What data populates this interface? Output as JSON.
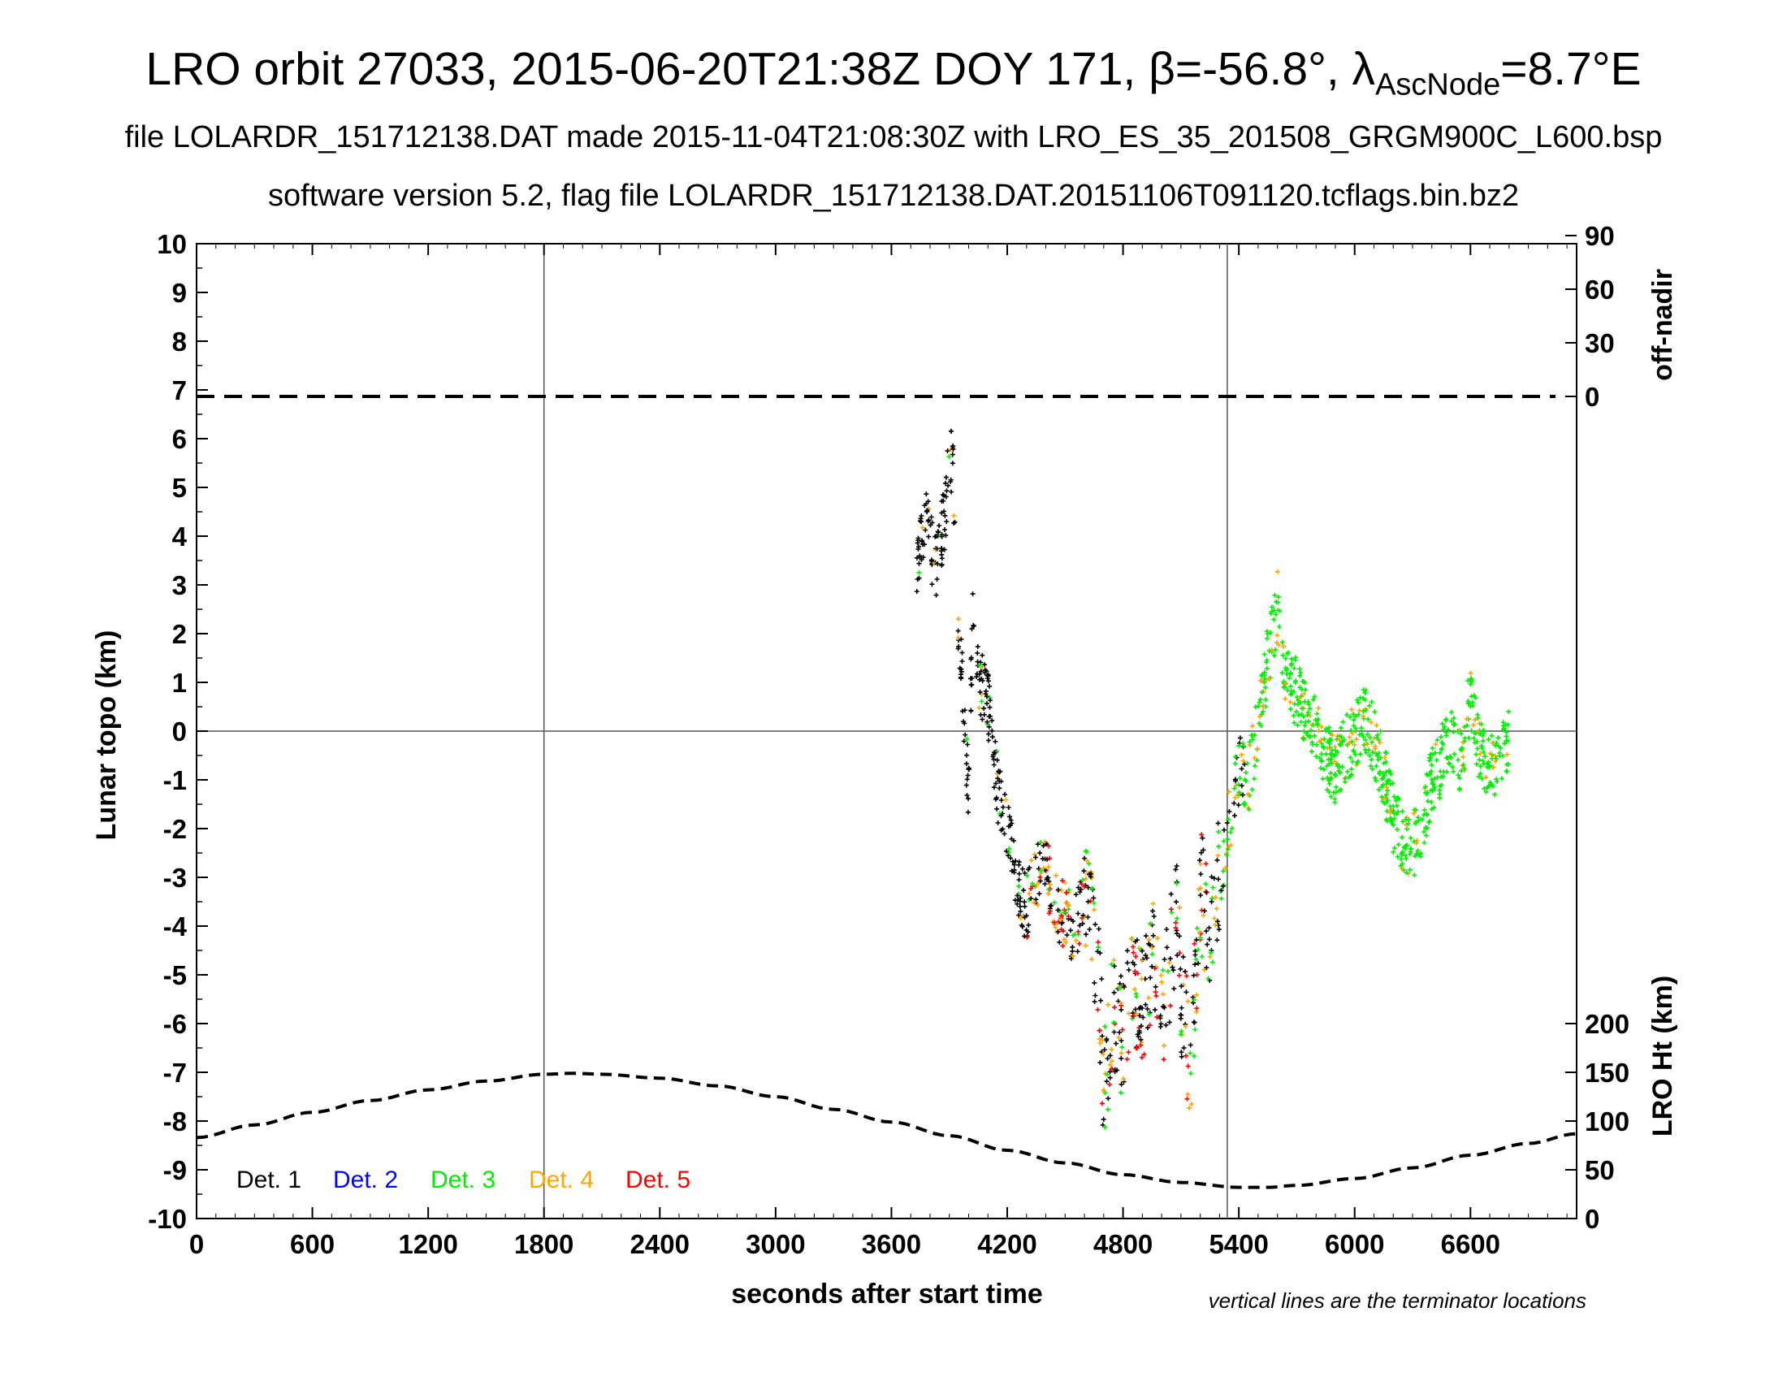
{
  "titles": {
    "line1_prefix": "LRO orbit 27033, 2015-06-20T21:38Z DOY 171, β=-56.8°, λ",
    "line1_sub": "AscNode",
    "line1_suffix": "=8.7°E",
    "line2": "file LOLARDR_151712138.DAT made 2015-11-04T21:08:30Z with LRO_ES_35_201508_GRGM900C_L600.bsp",
    "line3": "software version 5.2, flag file LOLARDR_151712138.DAT.20151106T091120.tcflags.bin.bz2"
  },
  "chart_data": {
    "type": "scatter",
    "xlabel": "seconds after start time",
    "ylabel": "Lunar topo (km)",
    "right_axis_top_label": "off-nadir",
    "right_axis_bottom_label": "LRO Ht (km)",
    "note": "vertical lines are the terminator locations",
    "xlim": [
      0,
      7150
    ],
    "ylim": [
      -10,
      10
    ],
    "x_ticks": [
      0,
      600,
      1200,
      1800,
      2400,
      3000,
      3600,
      4200,
      4800,
      5400,
      6000,
      6600
    ],
    "y_ticks": [
      10,
      9,
      8,
      7,
      6,
      5,
      4,
      3,
      2,
      1,
      0,
      -1,
      -2,
      -3,
      -4,
      -5,
      -6,
      -7,
      -8,
      -9,
      -10
    ],
    "right_top_ticks": [
      90,
      60,
      30,
      0
    ],
    "right_bottom_ticks": [
      200,
      150,
      100,
      50,
      0
    ],
    "grid": false,
    "zero_line": 0,
    "terminator_lines_x": [
      1800,
      5340
    ],
    "off_nadir_dashed_value_deg": 0,
    "lro_height_curve_km": {
      "x": [
        0,
        300,
        600,
        900,
        1200,
        1500,
        1800,
        1950,
        2100,
        2400,
        2700,
        3000,
        3300,
        3600,
        3900,
        4200,
        4500,
        4800,
        5100,
        5400,
        5550,
        5700,
        6000,
        6300,
        6600,
        6900,
        7150
      ],
      "y": [
        83,
        96,
        109,
        121,
        132,
        141,
        148,
        149,
        148,
        144,
        136,
        125,
        112,
        99,
        85,
        70,
        57,
        45,
        37,
        32,
        32,
        34,
        41,
        52,
        65,
        77,
        87
      ]
    },
    "series": [
      {
        "name": "Det. 1",
        "color": "#000000"
      },
      {
        "name": "Det. 2",
        "color": "#0000ff"
      },
      {
        "name": "Det. 3",
        "color": "#00ee00"
      },
      {
        "name": "Det. 4",
        "color": "#ffa500"
      },
      {
        "name": "Det. 5",
        "color": "#ff0000"
      }
    ],
    "topo_profile": {
      "x": [
        3730,
        3760,
        3790,
        3820,
        3850,
        3880,
        3900,
        3920,
        3940,
        3960,
        3980,
        4000,
        4020,
        4060,
        4100,
        4150,
        4200,
        4250,
        4300,
        4350,
        4400,
        4450,
        4500,
        4550,
        4600,
        4650,
        4680,
        4700,
        4750,
        4800,
        4850,
        4900,
        4950,
        5000,
        5050,
        5080,
        5100,
        5150,
        5200,
        5250,
        5300,
        5350,
        5400,
        5450,
        5500,
        5550,
        5600,
        5650,
        5700,
        5750,
        5800,
        5850,
        5900,
        5950,
        6000,
        6050,
        6100,
        6150,
        6200,
        6250,
        6300,
        6350,
        6400,
        6450,
        6500,
        6550,
        6600,
        6650,
        6700,
        6750,
        6800
      ],
      "y": [
        3.5,
        4.2,
        4.6,
        3.2,
        3.9,
        4.4,
        6.0,
        5.2,
        2.5,
        1.5,
        0.0,
        -1.2,
        2.2,
        1.0,
        0.6,
        -1.2,
        -2.0,
        -3.2,
        -3.6,
        -3.0,
        -2.8,
        -3.6,
        -3.8,
        -4.1,
        -3.5,
        -4.4,
        -5.4,
        -7.3,
        -5.6,
        -6.3,
        -5.1,
        -5.7,
        -4.5,
        -6.1,
        -4.6,
        -3.9,
        -5.5,
        -6.8,
        -3.3,
        -4.0,
        -3.0,
        -1.9,
        -0.8,
        -1.0,
        0.2,
        1.5,
        2.6,
        1.0,
        0.8,
        0.3,
        0.0,
        -0.5,
        -0.8,
        -0.4,
        -0.1,
        0.3,
        -0.2,
        -0.9,
        -1.8,
        -2.3,
        -2.4,
        -1.8,
        -1.0,
        -0.6,
        0.0,
        -0.7,
        0.8,
        -0.5,
        -0.8,
        -0.5,
        -0.2
      ]
    }
  }
}
